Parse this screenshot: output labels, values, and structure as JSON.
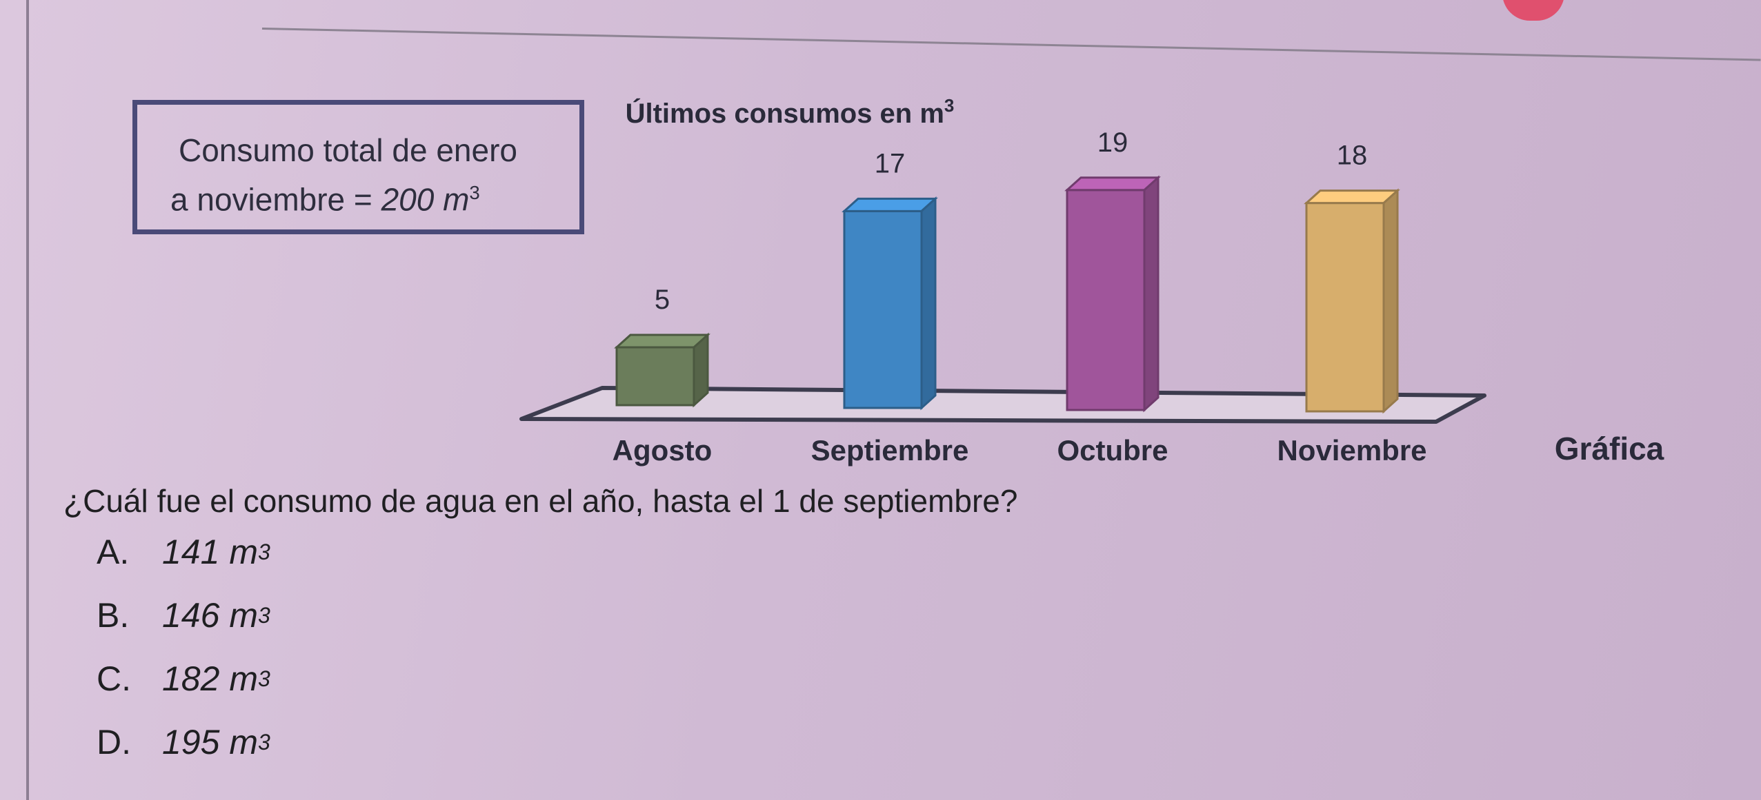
{
  "info_box": {
    "line1": "Consumo total de enero",
    "line2_prefix": "a noviembre = ",
    "line2_value": "200 m",
    "line2_exp": "3"
  },
  "chart_data": {
    "type": "bar",
    "title": "Últimos consumos en m",
    "title_exp": "3",
    "categories": [
      "Agosto",
      "Septiembre",
      "Octubre",
      "Noviembre"
    ],
    "values": [
      5,
      17,
      19,
      18
    ],
    "colors": [
      "#6b7d5b",
      "#3f86c4",
      "#a0559b",
      "#d7ae6c"
    ],
    "ylim": [
      0,
      19
    ],
    "caption": "Gráfica"
  },
  "question": "¿Cuál fue el consumo de agua en el año, hasta el 1 de septiembre?",
  "options": [
    {
      "letter": "A.",
      "value": "141 m",
      "exp": "3"
    },
    {
      "letter": "B.",
      "value": "146 m",
      "exp": "3"
    },
    {
      "letter": "C.",
      "value": "182 m",
      "exp": "3"
    },
    {
      "letter": "D.",
      "value": "195 m",
      "exp": "3"
    }
  ]
}
